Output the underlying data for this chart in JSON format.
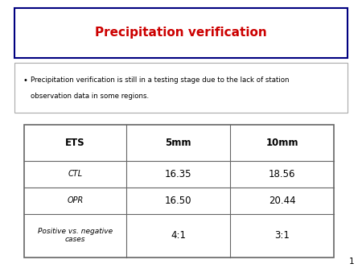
{
  "title": "Precipitation verification",
  "title_color": "#cc0000",
  "title_fontsize": 11,
  "bullet_text_line1": "Precipitation verification is still in a testing stage due to the lack of station",
  "bullet_text_line2": "observation data in some regions.",
  "table_headers": [
    "ETS",
    "5mm",
    "10mm"
  ],
  "table_rows": [
    [
      "CTL",
      "16.35",
      "18.56"
    ],
    [
      "OPR",
      "16.50",
      "20.44"
    ],
    [
      "Positive vs. negative\ncases",
      "4:1",
      "3:1"
    ]
  ],
  "page_number": "1",
  "bg_color": "#ffffff",
  "border_color_title": "#000080",
  "border_color_bullet": "#aaaaaa",
  "border_color_table": "#666666"
}
